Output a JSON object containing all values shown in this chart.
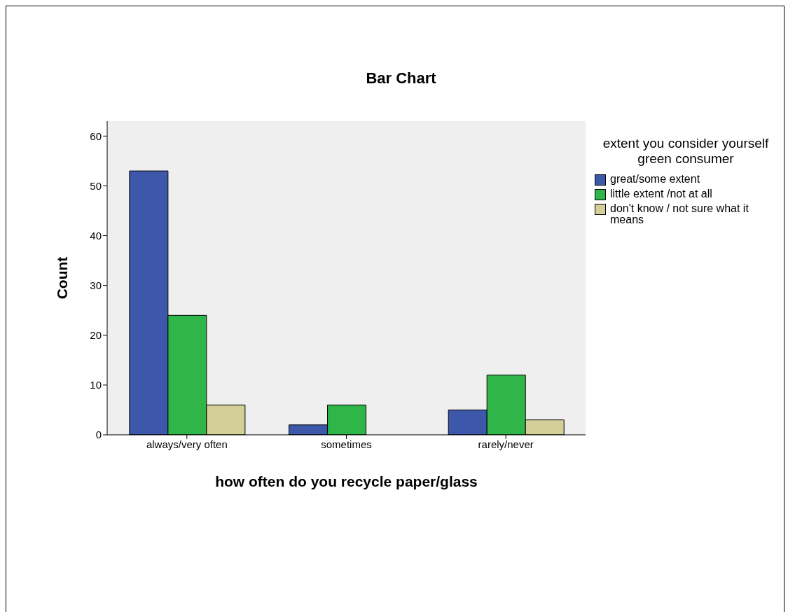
{
  "chart_data": {
    "type": "bar",
    "title": "Bar Chart",
    "xlabel": "how often do you recycle paper/glass",
    "ylabel": "Count",
    "legend_title": "extent you consider yourself green consumer",
    "categories": [
      "always/very often",
      "sometimes",
      "rarely/never"
    ],
    "series": [
      {
        "name": "great/some extent",
        "color": "#3d58ab",
        "values": [
          53,
          2,
          5
        ]
      },
      {
        "name": "little extent /not at all",
        "color": "#2fb548",
        "values": [
          24,
          6,
          12
        ]
      },
      {
        "name": "don't know / not sure what it means",
        "color": "#d4ce98",
        "values": [
          6,
          null,
          3
        ]
      }
    ],
    "ylim": [
      0,
      63
    ],
    "yticks": [
      0,
      10,
      20,
      30,
      40,
      50,
      60
    ],
    "legend": "top right",
    "grid": false
  }
}
